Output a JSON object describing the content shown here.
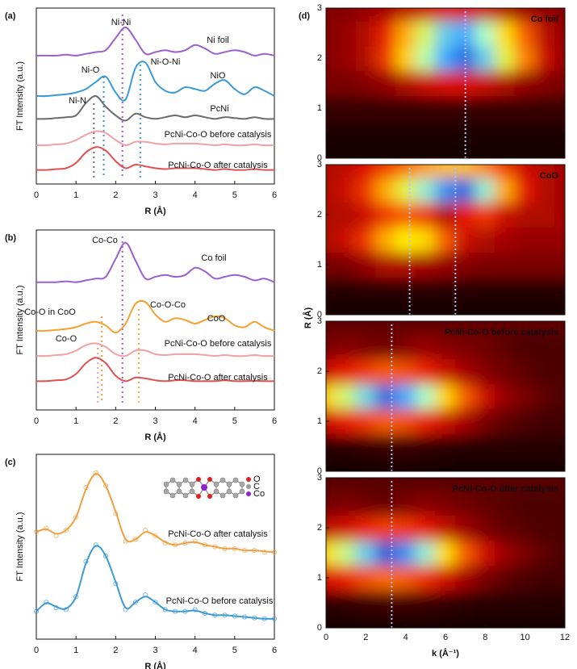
{
  "chart_data": [
    {
      "type": "line",
      "panel_label": "(a)",
      "xlabel": "R (Å)",
      "ylabel": "FT Intensity (a.u.)",
      "xlim": [
        0,
        6
      ],
      "xticks": [
        0,
        1,
        2,
        3,
        4,
        5,
        6
      ],
      "ylim": [
        0,
        10
      ],
      "x": [
        0,
        0.25,
        0.5,
        0.75,
        1,
        1.25,
        1.5,
        1.75,
        2,
        2.25,
        2.5,
        2.75,
        3,
        3.25,
        3.5,
        3.75,
        4,
        4.25,
        4.5,
        4.75,
        5,
        5.25,
        5.5,
        5.75,
        6
      ],
      "series": [
        {
          "name": "Ni foil",
          "color": "#9a5fd1",
          "values": [
            7.3,
            7.3,
            7.3,
            7.35,
            7.3,
            7.4,
            7.5,
            7.6,
            8.3,
            8.9,
            8.2,
            7.4,
            7.5,
            7.6,
            7.5,
            7.6,
            7.9,
            7.7,
            7.4,
            7.5,
            7.6,
            7.5,
            7.3,
            7.4,
            7.3
          ]
        },
        {
          "name": "NiO",
          "color": "#3a9ad9",
          "values": [
            5.0,
            5.0,
            5.05,
            5.1,
            5.2,
            5.4,
            5.8,
            6.1,
            5.2,
            4.8,
            6.6,
            6.9,
            5.8,
            5.3,
            5.2,
            5.5,
            5.4,
            5.3,
            5.7,
            5.9,
            5.4,
            5.1,
            5.5,
            5.3,
            5.0
          ]
        },
        {
          "name": "PcNi",
          "color": "#6b6b6b",
          "values": [
            3.7,
            3.7,
            3.75,
            3.8,
            3.9,
            4.6,
            5.0,
            4.4,
            3.9,
            3.6,
            4.0,
            3.8,
            3.7,
            3.8,
            3.9,
            3.8,
            3.9,
            3.8,
            3.7,
            3.8,
            3.75,
            3.7,
            3.8,
            3.7,
            3.7
          ]
        },
        {
          "name": "PcNi-Co-O before catalysis",
          "color": "#f2a0a0",
          "values": [
            2.2,
            2.2,
            2.25,
            2.3,
            2.5,
            2.8,
            3.0,
            2.9,
            2.5,
            2.2,
            2.4,
            2.4,
            2.3,
            2.25,
            2.3,
            2.3,
            2.3,
            2.25,
            2.2,
            2.25,
            2.2,
            2.2,
            2.25,
            2.2,
            2.2
          ]
        },
        {
          "name": "PcNi-Co-O after catalysis",
          "color": "#e05050",
          "values": [
            0.8,
            0.8,
            0.85,
            0.9,
            1.2,
            1.8,
            2.1,
            1.9,
            1.3,
            0.9,
            1.1,
            1.0,
            0.9,
            0.85,
            0.9,
            0.9,
            0.9,
            0.85,
            0.8,
            0.85,
            0.8,
            0.8,
            0.85,
            0.8,
            0.8
          ]
        }
      ],
      "annotations": [
        {
          "text": "Ni-Ni",
          "color": "#9a5fd1"
        },
        {
          "text": "Ni-O",
          "color": "#3a9ad9"
        },
        {
          "text": "Ni-O-Ni",
          "color": "#3a9ad9"
        },
        {
          "text": "Ni-N",
          "color": "#6b6b6b"
        }
      ],
      "vlines": [
        {
          "value": 2.17,
          "color": "#9a5fd1"
        },
        {
          "value": 1.7,
          "color": "#3a9ad9"
        },
        {
          "value": 2.62,
          "color": "#3a9ad9"
        },
        {
          "value": 1.45,
          "color": "#6b6b6b"
        }
      ]
    },
    {
      "type": "line",
      "panel_label": "(b)",
      "xlabel": "R (Å)",
      "ylabel": "FT Intensity (a.u.)",
      "xlim": [
        0,
        6
      ],
      "xticks": [
        0,
        1,
        2,
        3,
        4,
        5,
        6
      ],
      "ylim": [
        0,
        10
      ],
      "x": [
        0,
        0.25,
        0.5,
        0.75,
        1,
        1.25,
        1.5,
        1.75,
        2,
        2.25,
        2.5,
        2.75,
        3,
        3.25,
        3.5,
        3.75,
        4,
        4.25,
        4.5,
        4.75,
        5,
        5.25,
        5.5,
        5.75,
        6
      ],
      "series": [
        {
          "name": "Co foil",
          "color": "#9a5fd1",
          "values": [
            7.1,
            7.1,
            7.1,
            7.15,
            7.1,
            7.2,
            7.3,
            7.4,
            8.4,
            9.3,
            8.3,
            7.3,
            7.4,
            7.5,
            7.4,
            7.5,
            7.9,
            7.7,
            7.3,
            7.4,
            7.5,
            7.4,
            7.2,
            7.3,
            7.1
          ]
        },
        {
          "name": "CoO",
          "color": "#f5a030",
          "values": [
            4.4,
            4.4,
            4.45,
            4.5,
            4.6,
            4.8,
            4.9,
            4.7,
            4.3,
            4.8,
            5.9,
            6.0,
            5.3,
            4.9,
            5.1,
            5.0,
            4.8,
            5.0,
            5.2,
            5.1,
            4.7,
            4.6,
            4.9,
            4.6,
            4.4
          ]
        },
        {
          "name": "PcNi-Co-O before catalysis",
          "color": "#f2a0a0",
          "values": [
            3.0,
            3.0,
            3.05,
            3.1,
            3.3,
            3.6,
            3.7,
            3.5,
            3.1,
            3.0,
            3.3,
            3.3,
            3.1,
            3.05,
            3.1,
            3.1,
            3.1,
            3.05,
            3.0,
            3.05,
            3.0,
            3.0,
            3.05,
            3.0,
            3.0
          ]
        },
        {
          "name": "PcNi-Co-O after catalysis",
          "color": "#e05050",
          "values": [
            1.6,
            1.6,
            1.65,
            1.7,
            2.0,
            2.6,
            2.9,
            2.6,
            1.9,
            1.6,
            1.8,
            1.75,
            1.65,
            1.6,
            1.65,
            1.65,
            1.6,
            1.6,
            1.6,
            1.65,
            1.6,
            1.6,
            1.62,
            1.6,
            1.6
          ]
        }
      ],
      "annotations": [
        {
          "text": "Co-Co",
          "color": "#9a5fd1"
        },
        {
          "text": "Co-O in CoO",
          "color": "#f5a030"
        },
        {
          "text": "Co-O-Co",
          "color": "#f5a030"
        },
        {
          "text": "Co-O",
          "color": "#f2a0a0"
        }
      ],
      "vlines": [
        {
          "value": 2.17,
          "color": "#9a5fd1"
        },
        {
          "value": 1.65,
          "color": "#f5a030"
        },
        {
          "value": 2.58,
          "color": "#f5a030"
        },
        {
          "value": 1.55,
          "color": "#f2a0a0"
        }
      ]
    },
    {
      "type": "fit",
      "panel_label": "(c)",
      "xlabel": "R (Å)",
      "ylabel": "FT Intensity (a.u.)",
      "xlim": [
        0,
        6
      ],
      "xticks": [
        0,
        1,
        2,
        3,
        4,
        5,
        6
      ],
      "ylim": [
        0,
        10
      ],
      "x": [
        0,
        0.25,
        0.5,
        0.75,
        1,
        1.25,
        1.5,
        1.75,
        2,
        2.25,
        2.5,
        2.75,
        3,
        3.25,
        3.5,
        3.75,
        4,
        4.25,
        4.5,
        4.75,
        5,
        5.25,
        5.5,
        5.75,
        6
      ],
      "series": [
        {
          "name": "PcNi-Co-O after catalysis",
          "color": "#f0a040",
          "values": [
            5.8,
            6.0,
            5.6,
            5.9,
            6.6,
            8.2,
            9.0,
            8.3,
            6.8,
            5.3,
            5.4,
            5.9,
            5.6,
            5.2,
            5.1,
            5.2,
            5.3,
            5.1,
            5.0,
            4.9,
            4.9,
            4.8,
            4.8,
            4.7,
            4.7
          ],
          "fit": [
            5.8,
            5.95,
            5.7,
            5.9,
            6.6,
            8.1,
            8.95,
            8.3,
            6.9,
            5.4,
            5.4,
            5.8,
            5.6,
            5.25,
            5.1,
            5.2,
            5.25,
            5.1,
            5.0,
            4.9,
            4.9,
            4.8,
            4.8,
            4.75,
            4.7
          ]
        },
        {
          "name": "PcNi-Co-O before catalysis",
          "color": "#3e9bd6",
          "values": [
            1.5,
            2.0,
            1.7,
            1.6,
            2.3,
            4.2,
            5.1,
            4.5,
            3.0,
            1.6,
            2.0,
            2.4,
            2.0,
            1.6,
            1.5,
            1.5,
            1.6,
            1.4,
            1.3,
            1.3,
            1.25,
            1.2,
            1.15,
            1.1,
            1.1
          ],
          "fit": [
            1.5,
            1.95,
            1.75,
            1.65,
            2.3,
            4.1,
            5.05,
            4.5,
            3.1,
            1.7,
            2.0,
            2.3,
            2.0,
            1.6,
            1.5,
            1.5,
            1.55,
            1.4,
            1.3,
            1.3,
            1.25,
            1.2,
            1.15,
            1.1,
            1.1
          ]
        }
      ],
      "inset_legend": [
        {
          "label": "O",
          "color": "#e02020"
        },
        {
          "label": "C",
          "color": "#999999"
        },
        {
          "label": "Co",
          "color": "#9020d0"
        }
      ]
    },
    {
      "type": "heatmap",
      "panel_label": "(d)",
      "xlabel": "k (Å⁻¹)",
      "ylabel": "R (Å)",
      "xlim": [
        0,
        12
      ],
      "xticks": [
        0,
        2,
        4,
        6,
        8,
        10,
        12
      ],
      "ylim": [
        0,
        3
      ],
      "yticks": [
        0,
        1,
        2,
        3
      ],
      "k": [
        0,
        1,
        2,
        3,
        4,
        5,
        6,
        7,
        8,
        9,
        10,
        11,
        12
      ],
      "R": [
        0,
        0.5,
        1,
        1.5,
        2,
        2.5,
        3
      ],
      "maps": [
        {
          "name": "Co foil",
          "markers": [
            7
          ],
          "z": [
            [
              0.02,
              0.02,
              0.02,
              0.02,
              0.02,
              0.02,
              0.02,
              0.02,
              0.02,
              0.02,
              0.02,
              0.02,
              0.02
            ],
            [
              0.03,
              0.03,
              0.03,
              0.03,
              0.03,
              0.03,
              0.03,
              0.03,
              0.03,
              0.03,
              0.03,
              0.03,
              0.03
            ],
            [
              0.08,
              0.08,
              0.08,
              0.08,
              0.08,
              0.08,
              0.08,
              0.08,
              0.08,
              0.08,
              0.08,
              0.08,
              0.08
            ],
            [
              0.2,
              0.2,
              0.22,
              0.25,
              0.3,
              0.35,
              0.38,
              0.38,
              0.35,
              0.3,
              0.25,
              0.22,
              0.2
            ],
            [
              0.22,
              0.25,
              0.3,
              0.45,
              0.64,
              0.78,
              0.9,
              0.95,
              0.86,
              0.72,
              0.55,
              0.35,
              0.25
            ],
            [
              0.22,
              0.25,
              0.3,
              0.42,
              0.6,
              0.74,
              0.86,
              0.9,
              0.8,
              0.66,
              0.5,
              0.32,
              0.25
            ],
            [
              0.22,
              0.22,
              0.25,
              0.28,
              0.32,
              0.35,
              0.38,
              0.38,
              0.35,
              0.3,
              0.26,
              0.24,
              0.22
            ]
          ]
        },
        {
          "name": "CoO",
          "markers": [
            4.2,
            6.5
          ],
          "z": [
            [
              0.02,
              0.02,
              0.02,
              0.02,
              0.02,
              0.02,
              0.02,
              0.02,
              0.02,
              0.02,
              0.02,
              0.02,
              0.02
            ],
            [
              0.05,
              0.05,
              0.05,
              0.05,
              0.05,
              0.05,
              0.05,
              0.05,
              0.05,
              0.05,
              0.05,
              0.05,
              0.05
            ],
            [
              0.2,
              0.2,
              0.25,
              0.3,
              0.3,
              0.28,
              0.25,
              0.22,
              0.2,
              0.2,
              0.2,
              0.2,
              0.2
            ],
            [
              0.3,
              0.35,
              0.45,
              0.6,
              0.68,
              0.65,
              0.5,
              0.35,
              0.3,
              0.28,
              0.25,
              0.25,
              0.25
            ],
            [
              0.3,
              0.3,
              0.35,
              0.45,
              0.5,
              0.45,
              0.3,
              0.4,
              0.45,
              0.35,
              0.3,
              0.3,
              0.28
            ],
            [
              0.3,
              0.35,
              0.45,
              0.6,
              0.72,
              0.82,
              0.92,
              0.95,
              0.82,
              0.6,
              0.4,
              0.3,
              0.28
            ],
            [
              0.3,
              0.32,
              0.38,
              0.45,
              0.52,
              0.58,
              0.62,
              0.62,
              0.55,
              0.45,
              0.35,
              0.3,
              0.28
            ]
          ]
        },
        {
          "name": "PcNi-Co-O before catalysis",
          "markers": [
            3.3
          ],
          "z": [
            [
              0.02,
              0.02,
              0.02,
              0.02,
              0.02,
              0.02,
              0.02,
              0.02,
              0.02,
              0.02,
              0.02,
              0.02,
              0.02
            ],
            [
              0.05,
              0.06,
              0.07,
              0.08,
              0.08,
              0.07,
              0.06,
              0.05,
              0.05,
              0.05,
              0.05,
              0.05,
              0.05
            ],
            [
              0.35,
              0.4,
              0.45,
              0.5,
              0.48,
              0.42,
              0.35,
              0.28,
              0.2,
              0.15,
              0.12,
              0.1,
              0.1
            ],
            [
              0.65,
              0.75,
              0.85,
              0.95,
              0.9,
              0.8,
              0.65,
              0.5,
              0.35,
              0.25,
              0.2,
              0.15,
              0.12
            ],
            [
              0.35,
              0.4,
              0.45,
              0.5,
              0.48,
              0.42,
              0.35,
              0.28,
              0.22,
              0.18,
              0.15,
              0.12,
              0.12
            ],
            [
              0.2,
              0.22,
              0.2,
              0.18,
              0.22,
              0.25,
              0.22,
              0.2,
              0.18,
              0.15,
              0.12,
              0.12,
              0.12
            ],
            [
              0.15,
              0.15,
              0.15,
              0.15,
              0.15,
              0.15,
              0.15,
              0.15,
              0.15,
              0.15,
              0.15,
              0.15,
              0.15
            ]
          ]
        },
        {
          "name": "PcNi-Co-O after catalysis",
          "markers": [
            3.3
          ],
          "z": [
            [
              0.02,
              0.02,
              0.02,
              0.02,
              0.02,
              0.02,
              0.02,
              0.02,
              0.02,
              0.02,
              0.02,
              0.02,
              0.02
            ],
            [
              0.06,
              0.07,
              0.08,
              0.09,
              0.09,
              0.08,
              0.07,
              0.06,
              0.05,
              0.05,
              0.05,
              0.05,
              0.05
            ],
            [
              0.38,
              0.42,
              0.48,
              0.52,
              0.5,
              0.44,
              0.36,
              0.28,
              0.2,
              0.15,
              0.12,
              0.1,
              0.1
            ],
            [
              0.66,
              0.76,
              0.86,
              0.96,
              0.92,
              0.82,
              0.66,
              0.5,
              0.36,
              0.26,
              0.2,
              0.15,
              0.12
            ],
            [
              0.32,
              0.36,
              0.42,
              0.46,
              0.45,
              0.4,
              0.33,
              0.26,
              0.2,
              0.16,
              0.14,
              0.12,
              0.12
            ],
            [
              0.18,
              0.2,
              0.18,
              0.16,
              0.2,
              0.22,
              0.2,
              0.18,
              0.16,
              0.14,
              0.12,
              0.12,
              0.12
            ],
            [
              0.14,
              0.14,
              0.14,
              0.14,
              0.14,
              0.14,
              0.14,
              0.14,
              0.14,
              0.14,
              0.14,
              0.14,
              0.14
            ]
          ]
        }
      ]
    }
  ]
}
